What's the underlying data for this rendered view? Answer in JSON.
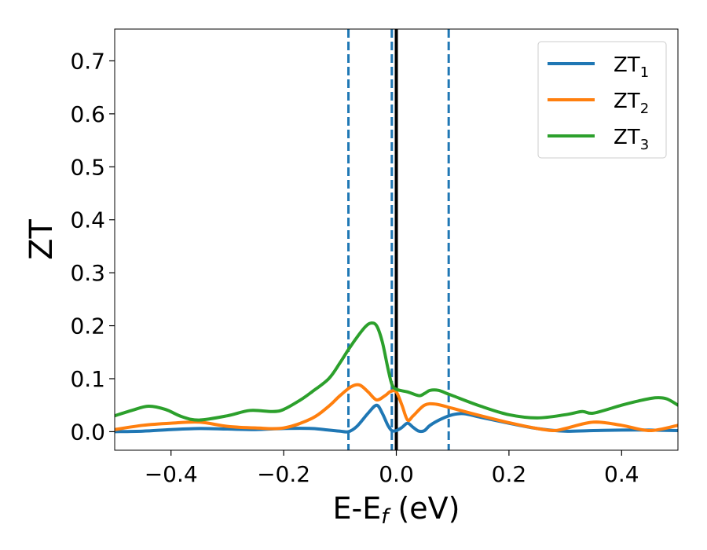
{
  "chart_data": {
    "type": "line",
    "xlabel": "E-E",
    "xlabel_sub": "f",
    "xlabel_unit": " (eV)",
    "ylabel": "ZT",
    "xlim": [
      -0.5,
      0.5
    ],
    "ylim": [
      -0.035,
      0.76
    ],
    "x_ticks": [
      -0.4,
      -0.2,
      0.0,
      0.2,
      0.4
    ],
    "x_tick_labels": [
      "−0.4",
      "−0.2",
      "0.0",
      "0.2",
      "0.4"
    ],
    "y_ticks": [
      0.0,
      0.1,
      0.2,
      0.3,
      0.4,
      0.5,
      0.6,
      0.7
    ],
    "y_tick_labels": [
      "0.0",
      "0.1",
      "0.2",
      "0.3",
      "0.4",
      "0.5",
      "0.6",
      "0.7"
    ],
    "grid": false,
    "legend_position": "top-right",
    "vertical_lines": [
      {
        "x": -0.085,
        "style": "dashed",
        "color": "#1f77b4"
      },
      {
        "x": -0.008,
        "style": "dashed",
        "color": "#1f77b4"
      },
      {
        "x": 0.0,
        "style": "solid",
        "color": "#000000"
      },
      {
        "x": 0.093,
        "style": "dashed",
        "color": "#1f77b4"
      }
    ],
    "series": [
      {
        "name": "ZT",
        "sub": "1",
        "color": "#1f77b4",
        "x": [
          -0.5,
          -0.45,
          -0.4,
          -0.35,
          -0.3,
          -0.25,
          -0.2,
          -0.15,
          -0.12,
          -0.1,
          -0.085,
          -0.07,
          -0.05,
          -0.035,
          -0.025,
          -0.015,
          -0.008,
          0.0,
          0.01,
          0.02,
          0.03,
          0.04,
          0.05,
          0.06,
          0.08,
          0.1,
          0.12,
          0.15,
          0.2,
          0.25,
          0.3,
          0.35,
          0.4,
          0.45,
          0.5
        ],
        "y": [
          0.0,
          0.001,
          0.004,
          0.006,
          0.005,
          0.004,
          0.006,
          0.006,
          0.003,
          0.001,
          0.0,
          0.01,
          0.035,
          0.05,
          0.035,
          0.012,
          0.002,
          0.002,
          0.008,
          0.016,
          0.008,
          0.001,
          0.002,
          0.012,
          0.024,
          0.032,
          0.034,
          0.027,
          0.016,
          0.006,
          0.001,
          0.002,
          0.003,
          0.003,
          0.002
        ]
      },
      {
        "name": "ZT",
        "sub": "2",
        "color": "#ff7f0e",
        "x": [
          -0.5,
          -0.45,
          -0.4,
          -0.35,
          -0.3,
          -0.25,
          -0.2,
          -0.15,
          -0.12,
          -0.1,
          -0.08,
          -0.065,
          -0.05,
          -0.035,
          -0.02,
          -0.01,
          0.0,
          0.01,
          0.02,
          0.03,
          0.05,
          0.07,
          0.1,
          0.15,
          0.2,
          0.25,
          0.28,
          0.3,
          0.35,
          0.4,
          0.45,
          0.5
        ],
        "y": [
          0.004,
          0.012,
          0.016,
          0.018,
          0.01,
          0.007,
          0.007,
          0.025,
          0.048,
          0.068,
          0.085,
          0.088,
          0.075,
          0.06,
          0.068,
          0.076,
          0.075,
          0.05,
          0.022,
          0.03,
          0.05,
          0.052,
          0.044,
          0.03,
          0.017,
          0.006,
          0.002,
          0.006,
          0.018,
          0.012,
          0.002,
          0.012
        ]
      },
      {
        "name": "ZT",
        "sub": "3",
        "color": "#2ca02c",
        "x": [
          -0.5,
          -0.47,
          -0.44,
          -0.41,
          -0.38,
          -0.35,
          -0.3,
          -0.26,
          -0.22,
          -0.2,
          -0.17,
          -0.15,
          -0.12,
          -0.1,
          -0.085,
          -0.07,
          -0.055,
          -0.045,
          -0.035,
          -0.025,
          -0.015,
          -0.008,
          0.0,
          0.02,
          0.04,
          0.05,
          0.06,
          0.075,
          0.09,
          0.1,
          0.15,
          0.2,
          0.25,
          0.3,
          0.33,
          0.35,
          0.4,
          0.43,
          0.46,
          0.48,
          0.5
        ],
        "y": [
          0.03,
          0.04,
          0.048,
          0.042,
          0.028,
          0.022,
          0.03,
          0.04,
          0.038,
          0.042,
          0.06,
          0.075,
          0.1,
          0.13,
          0.155,
          0.178,
          0.198,
          0.205,
          0.2,
          0.17,
          0.12,
          0.09,
          0.08,
          0.075,
          0.068,
          0.072,
          0.078,
          0.078,
          0.072,
          0.068,
          0.048,
          0.032,
          0.026,
          0.032,
          0.038,
          0.035,
          0.05,
          0.058,
          0.064,
          0.062,
          0.05
        ]
      }
    ]
  }
}
